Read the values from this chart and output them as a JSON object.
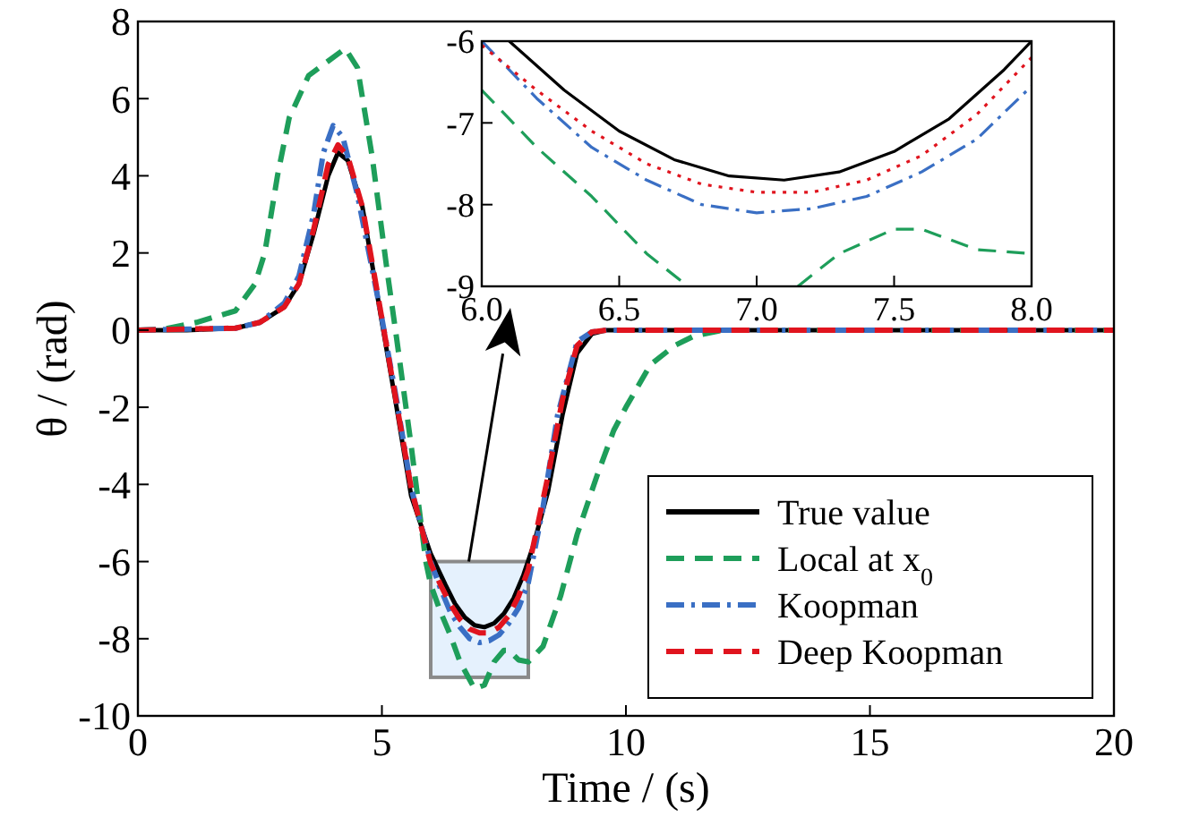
{
  "chart_data": [
    {
      "type": "line",
      "xlabel": "Time / (s)",
      "ylabel": "θ / (rad)",
      "xlim": [
        0,
        20
      ],
      "ylim": [
        -10,
        8
      ],
      "xticks": [
        0,
        5,
        10,
        15,
        20
      ],
      "yticks": [
        {
          "value": -10,
          "label": "-10"
        },
        {
          "value": -8,
          "label": "-8"
        },
        {
          "value": -6,
          "label": "-6"
        },
        {
          "value": -4,
          "label": "-4"
        },
        {
          "value": -2,
          "label": "-2"
        },
        0,
        2,
        4,
        6,
        8
      ],
      "legend": "bottom right",
      "series": [
        {
          "name": "True value",
          "color": "#000000",
          "line_style": "solid",
          "x": [
            0,
            1,
            2,
            2.5,
            3,
            3.3,
            3.6,
            3.9,
            4.1,
            4.3,
            4.6,
            5,
            5.3,
            5.6,
            6,
            6.3,
            6.5,
            6.7,
            6.9,
            7.1,
            7.3,
            7.5,
            7.7,
            7.9,
            8.1,
            8.4,
            8.7,
            9,
            9.3,
            9.6,
            10,
            15,
            20
          ],
          "values": [
            0,
            0,
            0.05,
            0.2,
            0.6,
            1.2,
            2.5,
            4.0,
            4.6,
            4.4,
            3.2,
            0.2,
            -2.0,
            -4.3,
            -5.8,
            -6.6,
            -7.1,
            -7.45,
            -7.65,
            -7.7,
            -7.6,
            -7.35,
            -6.95,
            -6.35,
            -5.6,
            -4.2,
            -2.2,
            -0.6,
            -0.1,
            0,
            0,
            0,
            0
          ]
        },
        {
          "name": "Local at x$_{0}$",
          "color": "#1e9e5a",
          "line_style": "dashed",
          "x": [
            0,
            0.5,
            1.2,
            2,
            2.4,
            2.6,
            2.86,
            3.1,
            3.5,
            4.25,
            4.5,
            4.8,
            5.1,
            5.3,
            5.6,
            5.9,
            6,
            6.2,
            6.4,
            6.6,
            6.9,
            7.1,
            7.3,
            7.5,
            7.6,
            7.8,
            8,
            8.3,
            8.66,
            9,
            9.4,
            9.75,
            10,
            10.5,
            11,
            11.4,
            12,
            20
          ],
          "values": [
            0,
            0.02,
            0.2,
            0.5,
            1.2,
            2.0,
            4.0,
            5.5,
            6.6,
            7.3,
            6.8,
            4.5,
            1.6,
            -0.2,
            -3.0,
            -6.0,
            -6.6,
            -7.3,
            -7.9,
            -8.6,
            -9.3,
            -9.2,
            -8.6,
            -8.3,
            -8.3,
            -8.55,
            -8.6,
            -8.2,
            -6.9,
            -5.3,
            -3.8,
            -2.6,
            -2.0,
            -0.9,
            -0.4,
            -0.15,
            0,
            0
          ]
        },
        {
          "name": "Koopman",
          "color": "#3a6fc4",
          "line_style": "dashdot",
          "x": [
            0,
            2,
            2.5,
            3,
            3.3,
            3.6,
            3.8,
            4.0,
            4.2,
            4.5,
            5,
            5.3,
            5.6,
            6,
            6.2,
            6.4,
            6.6,
            6.8,
            7,
            7.2,
            7.4,
            7.6,
            7.8,
            8,
            8.3,
            8.6,
            9,
            9.3,
            9.6,
            10,
            20
          ],
          "values": [
            0,
            0.05,
            0.2,
            0.7,
            1.4,
            3.0,
            4.6,
            5.3,
            5.0,
            3.5,
            0.3,
            -1.8,
            -4.1,
            -6.0,
            -6.7,
            -7.3,
            -7.7,
            -8.0,
            -8.1,
            -8.05,
            -7.9,
            -7.6,
            -7.2,
            -6.55,
            -4.6,
            -2.2,
            -0.3,
            -0.05,
            0,
            0,
            0
          ]
        },
        {
          "name": "Deep Koopman",
          "color": "#e0141e",
          "line_style": "dashed",
          "x": [
            0,
            2,
            2.5,
            3,
            3.3,
            3.6,
            3.9,
            4.1,
            4.3,
            4.6,
            5,
            5.3,
            5.6,
            6,
            6.2,
            6.4,
            6.6,
            6.8,
            7,
            7.2,
            7.4,
            7.6,
            7.8,
            8,
            8.4,
            8.7,
            9,
            9.3,
            9.6,
            10,
            20
          ],
          "values": [
            0,
            0.05,
            0.2,
            0.6,
            1.2,
            2.6,
            4.3,
            4.8,
            4.5,
            3.2,
            0.3,
            -1.9,
            -4.1,
            -6.05,
            -6.6,
            -7.1,
            -7.5,
            -7.75,
            -7.85,
            -7.85,
            -7.7,
            -7.4,
            -6.9,
            -6.2,
            -3.8,
            -1.8,
            -0.4,
            -0.05,
            0,
            0,
            0
          ]
        }
      ]
    },
    {
      "type": "line",
      "xlim": [
        6,
        8
      ],
      "ylim": [
        -9,
        -6
      ],
      "xticks": [
        {
          "value": 6,
          "label": "6.0"
        },
        {
          "value": 6.5,
          "label": "6.5"
        },
        {
          "value": 7,
          "label": "7.0"
        },
        {
          "value": 7.5,
          "label": "7.5"
        },
        {
          "value": 8,
          "label": "8.0"
        }
      ],
      "yticks": [
        {
          "value": -9,
          "label": "-9"
        },
        {
          "value": -8,
          "label": "-8"
        },
        {
          "value": -7,
          "label": "-7"
        },
        {
          "value": -6,
          "label": "-6"
        }
      ],
      "series": [
        {
          "color": "#000000",
          "line_style": "solid",
          "x": [
            6.1,
            6.3,
            6.5,
            6.7,
            6.9,
            7.1,
            7.3,
            7.5,
            7.7,
            7.9,
            8.0
          ],
          "values": [
            -6.0,
            -6.6,
            -7.1,
            -7.45,
            -7.65,
            -7.7,
            -7.6,
            -7.35,
            -6.95,
            -6.35,
            -6.0
          ]
        },
        {
          "color": "#1e9e5a",
          "line_style": "dashed",
          "x": [
            6.0,
            6.2,
            6.4,
            6.6,
            6.75,
            6.9,
            7.15,
            7.3,
            7.5,
            7.6,
            7.8,
            8.0
          ],
          "values": [
            -6.6,
            -7.3,
            -7.9,
            -8.6,
            -9.0,
            null,
            -9.0,
            -8.6,
            -8.3,
            -8.3,
            -8.55,
            -8.6
          ]
        },
        {
          "color": "#3a6fc4",
          "line_style": "dashdot",
          "x": [
            6.0,
            6.2,
            6.4,
            6.6,
            6.8,
            7.0,
            7.2,
            7.4,
            7.6,
            7.8,
            8.0
          ],
          "values": [
            -6.0,
            -6.7,
            -7.3,
            -7.7,
            -8.0,
            -8.1,
            -8.05,
            -7.9,
            -7.6,
            -7.2,
            -6.55
          ]
        },
        {
          "color": "#e0141e",
          "line_style": "dotted",
          "x": [
            6.0,
            6.2,
            6.4,
            6.6,
            6.8,
            7.0,
            7.2,
            7.4,
            7.6,
            7.8,
            8.0
          ],
          "values": [
            -6.05,
            -6.6,
            -7.1,
            -7.5,
            -7.75,
            -7.85,
            -7.85,
            -7.7,
            -7.4,
            -6.9,
            -6.2
          ]
        }
      ]
    }
  ]
}
